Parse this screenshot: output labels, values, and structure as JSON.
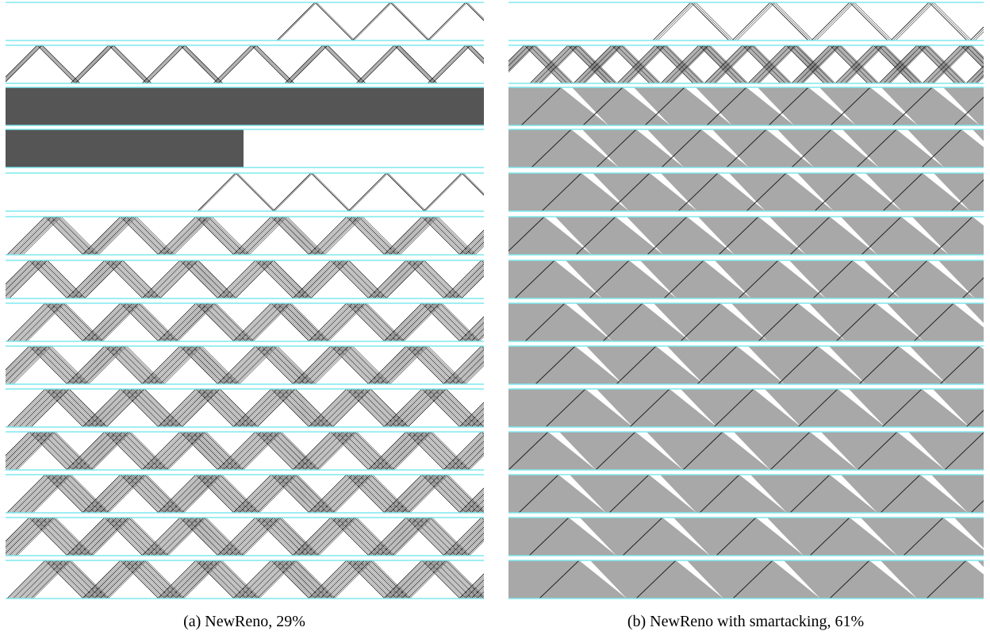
{
  "figure": {
    "panels": [
      {
        "caption": "(a) NewReno, 29%"
      },
      {
        "caption": "(b) NewReno with smartacking, 61%"
      }
    ]
  }
}
